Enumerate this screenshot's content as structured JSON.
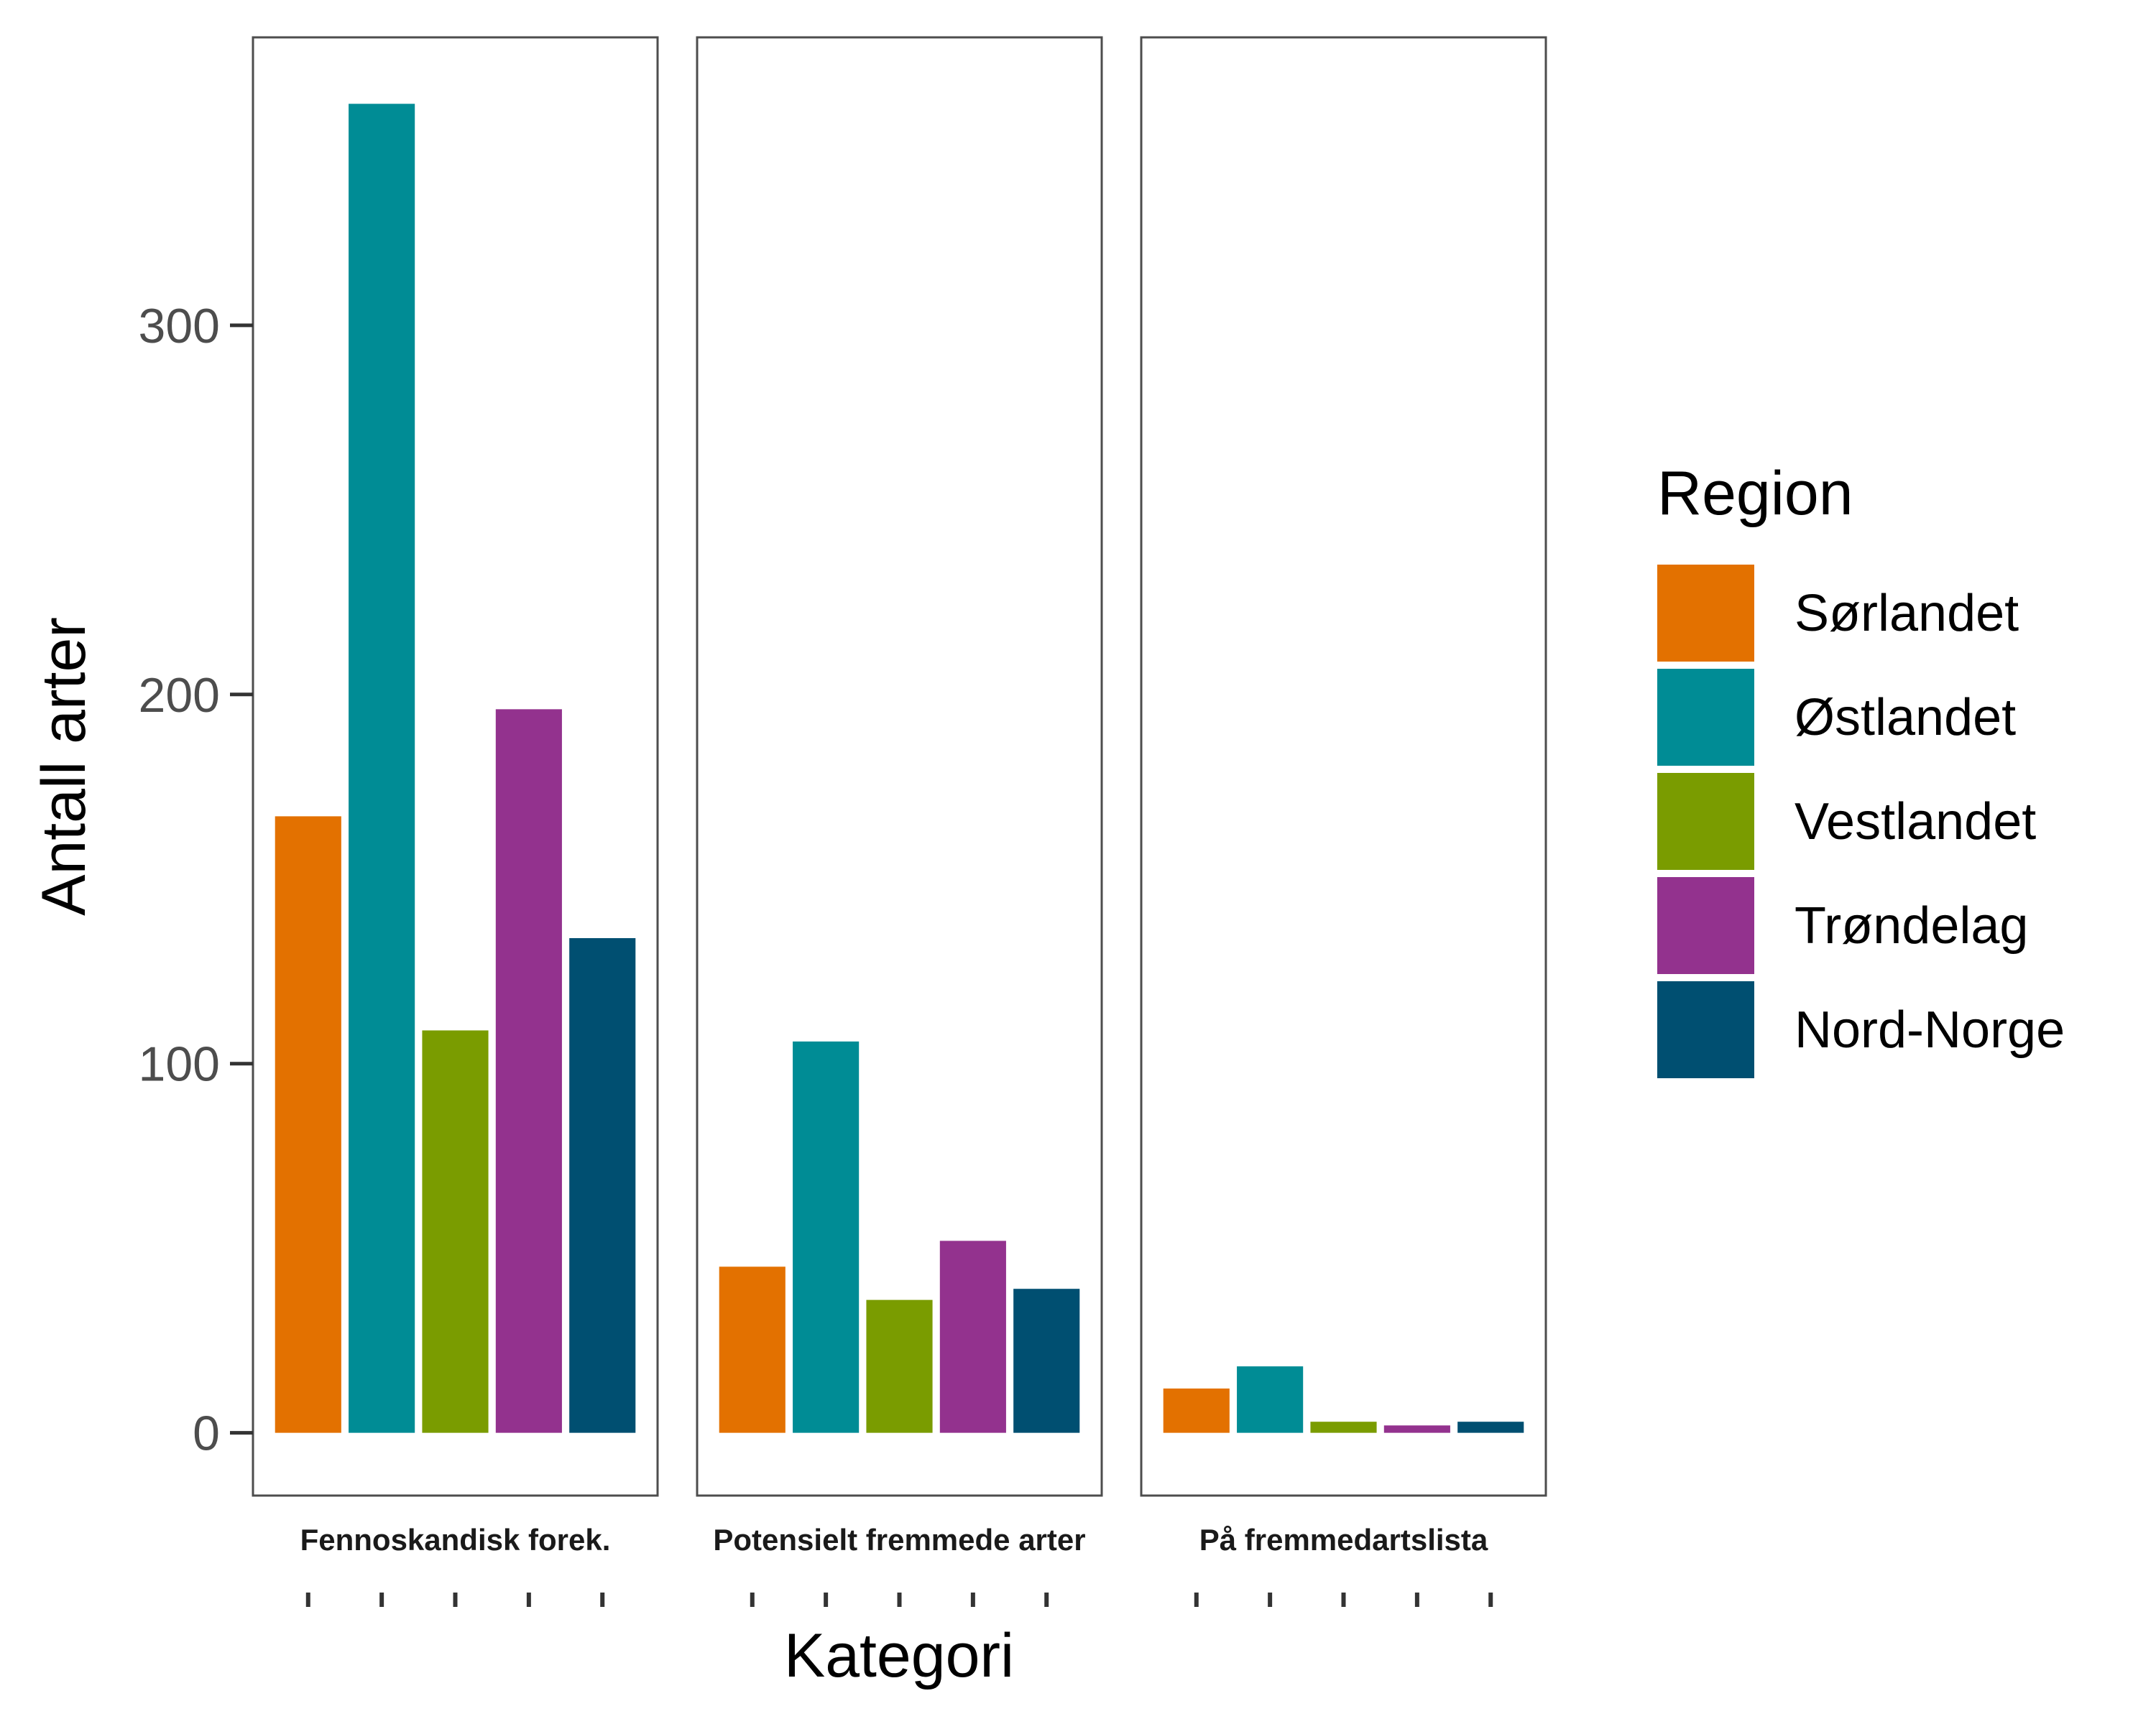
{
  "chart_data": {
    "type": "bar",
    "xlabel": "Kategori",
    "ylabel": "Antall arter",
    "ylim": [
      -17,
      378
    ],
    "yticks": [
      "0",
      "100",
      "200",
      "300"
    ],
    "grid": false,
    "legend": {
      "title": "Region",
      "placement": "right",
      "entries": [
        "Sørlandet",
        "Østlandet",
        "Vestlandet",
        "Trøndelag",
        "Nord-Norge"
      ]
    },
    "colors": [
      "#E37100",
      "#008C95",
      "#7A9C00",
      "#93328E",
      "#004F71"
    ],
    "facets": [
      {
        "label": "Fennoskandisk forek.",
        "values": [
          167,
          360,
          109,
          196,
          134
        ]
      },
      {
        "label": "Potensielt fremmede arter",
        "values": [
          45,
          106,
          36,
          52,
          39
        ]
      },
      {
        "label": "På fremmedartslista",
        "values": [
          12,
          18,
          3,
          2,
          3
        ]
      }
    ]
  }
}
